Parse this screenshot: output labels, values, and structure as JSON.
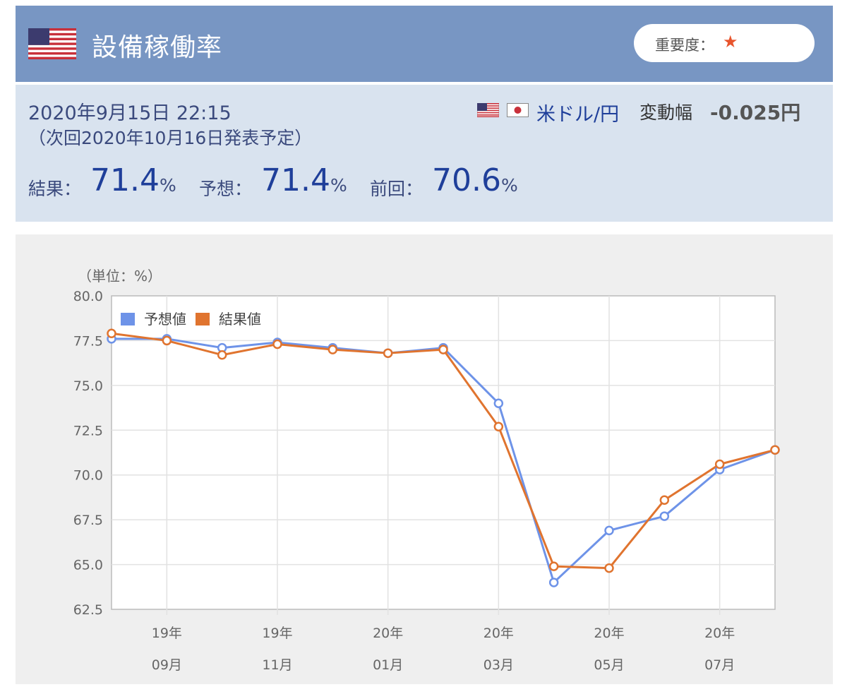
{
  "header": {
    "title": "設備稼働率",
    "importance_label": "重要度：",
    "importance_star": "★"
  },
  "info": {
    "datetime": "2020年9月15日 22:15",
    "next_release": "（次回2020年10月16日発表予定）",
    "pair": "米ドル/円",
    "range_label": "変動幅",
    "range_value": "-0.025円",
    "result_label": "結果：",
    "result_value": "71.4",
    "forecast_label": "予想：",
    "forecast_value": "71.4",
    "previous_label": "前回：",
    "previous_value": "70.6",
    "unit": "%"
  },
  "colors": {
    "header_bg": "#7896c3",
    "info_bg": "#d9e3ef",
    "forecast_line": "#6e93e8",
    "result_line": "#e0742f"
  },
  "chart_data": {
    "type": "line",
    "unit_label": "（単位：%）",
    "ylim": [
      62.5,
      80.0
    ],
    "y_ticks": [
      "80.0",
      "77.5",
      "75.0",
      "72.5",
      "70.0",
      "67.5",
      "65.0",
      "62.5"
    ],
    "x": [
      "19/08",
      "19/09",
      "19/10",
      "19/11",
      "19/12",
      "20/01",
      "20/02",
      "20/03",
      "20/04",
      "20/05",
      "20/06",
      "20/07",
      "20/08"
    ],
    "x_tick_labels": [
      {
        "year": "19年",
        "month": "09月"
      },
      {
        "year": "19年",
        "month": "11月"
      },
      {
        "year": "20年",
        "month": "01月"
      },
      {
        "year": "20年",
        "month": "03月"
      },
      {
        "year": "20年",
        "month": "05月"
      },
      {
        "year": "20年",
        "month": "07月"
      }
    ],
    "grid": true,
    "legend_position": "top-left",
    "series": [
      {
        "name": "予想値",
        "values": [
          77.6,
          77.6,
          77.1,
          77.4,
          77.1,
          76.8,
          77.1,
          74.0,
          64.0,
          66.9,
          67.7,
          70.3,
          71.4
        ]
      },
      {
        "name": "結果値",
        "values": [
          77.9,
          77.5,
          76.7,
          77.3,
          77.0,
          76.8,
          77.0,
          72.7,
          64.9,
          64.8,
          68.6,
          70.6,
          71.4
        ]
      }
    ]
  }
}
